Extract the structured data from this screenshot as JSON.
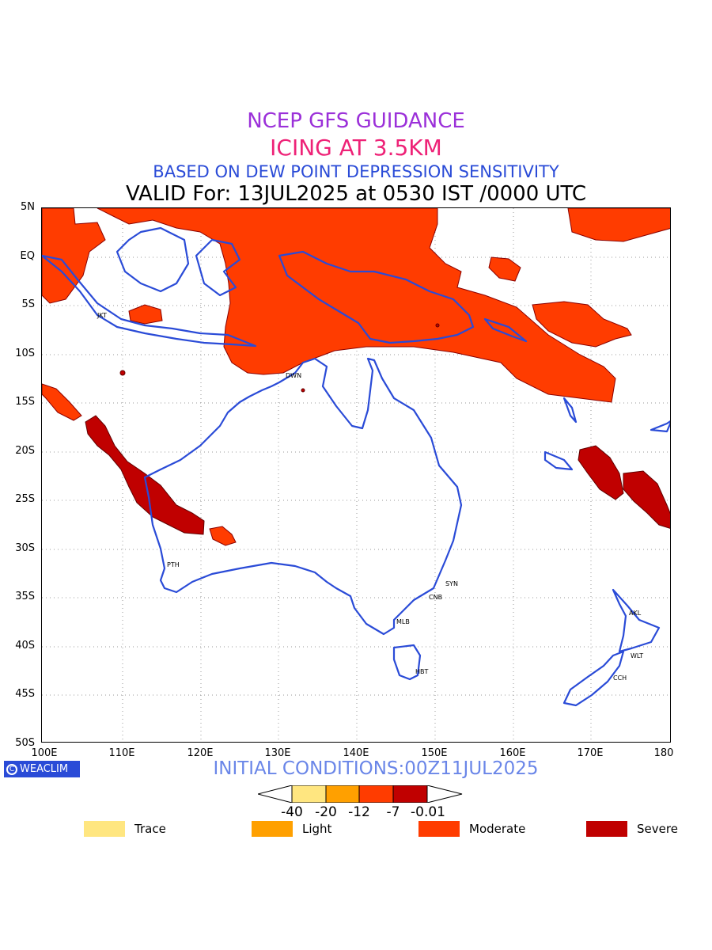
{
  "titles": {
    "line1": "NCEP GFS GUIDANCE",
    "line2": "ICING AT 3.5KM",
    "line3": "BASED ON DEW POINT DEPRESSION SENSITIVITY",
    "line4": "VALID For: 13JUL2025 at 0530 IST /0000 UTC"
  },
  "axes": {
    "lat_labels": [
      "5N",
      "EQ",
      "5S",
      "10S",
      "15S",
      "20S",
      "25S",
      "30S",
      "35S",
      "40S",
      "45S",
      "50S"
    ],
    "lon_labels": [
      "100E",
      "110E",
      "120E",
      "130E",
      "140E",
      "150E",
      "160E",
      "170E",
      "180"
    ]
  },
  "cities": [
    "JKT",
    "DWN",
    "PTH",
    "MLB",
    "CNB",
    "SYN",
    "HBT",
    "AKL",
    "WLT",
    "CCH"
  ],
  "brand": {
    "icon": "copyright-icon",
    "label": "WEACLIM"
  },
  "initial_conditions": "INITIAL CONDITIONS:00Z11JUL2025",
  "colorbar": {
    "ticks": [
      "-40",
      "-20",
      "-12",
      "-7",
      "-0.01"
    ],
    "colors": [
      "#ffe680",
      "#ffa000",
      "#ff3c00",
      "#c00000"
    ]
  },
  "legend": [
    {
      "label": "Trace",
      "color": "#ffe680"
    },
    {
      "label": "Light",
      "color": "#ffa000"
    },
    {
      "label": "Moderate",
      "color": "#ff3c00"
    },
    {
      "label": "Severe",
      "color": "#c00000"
    }
  ]
}
